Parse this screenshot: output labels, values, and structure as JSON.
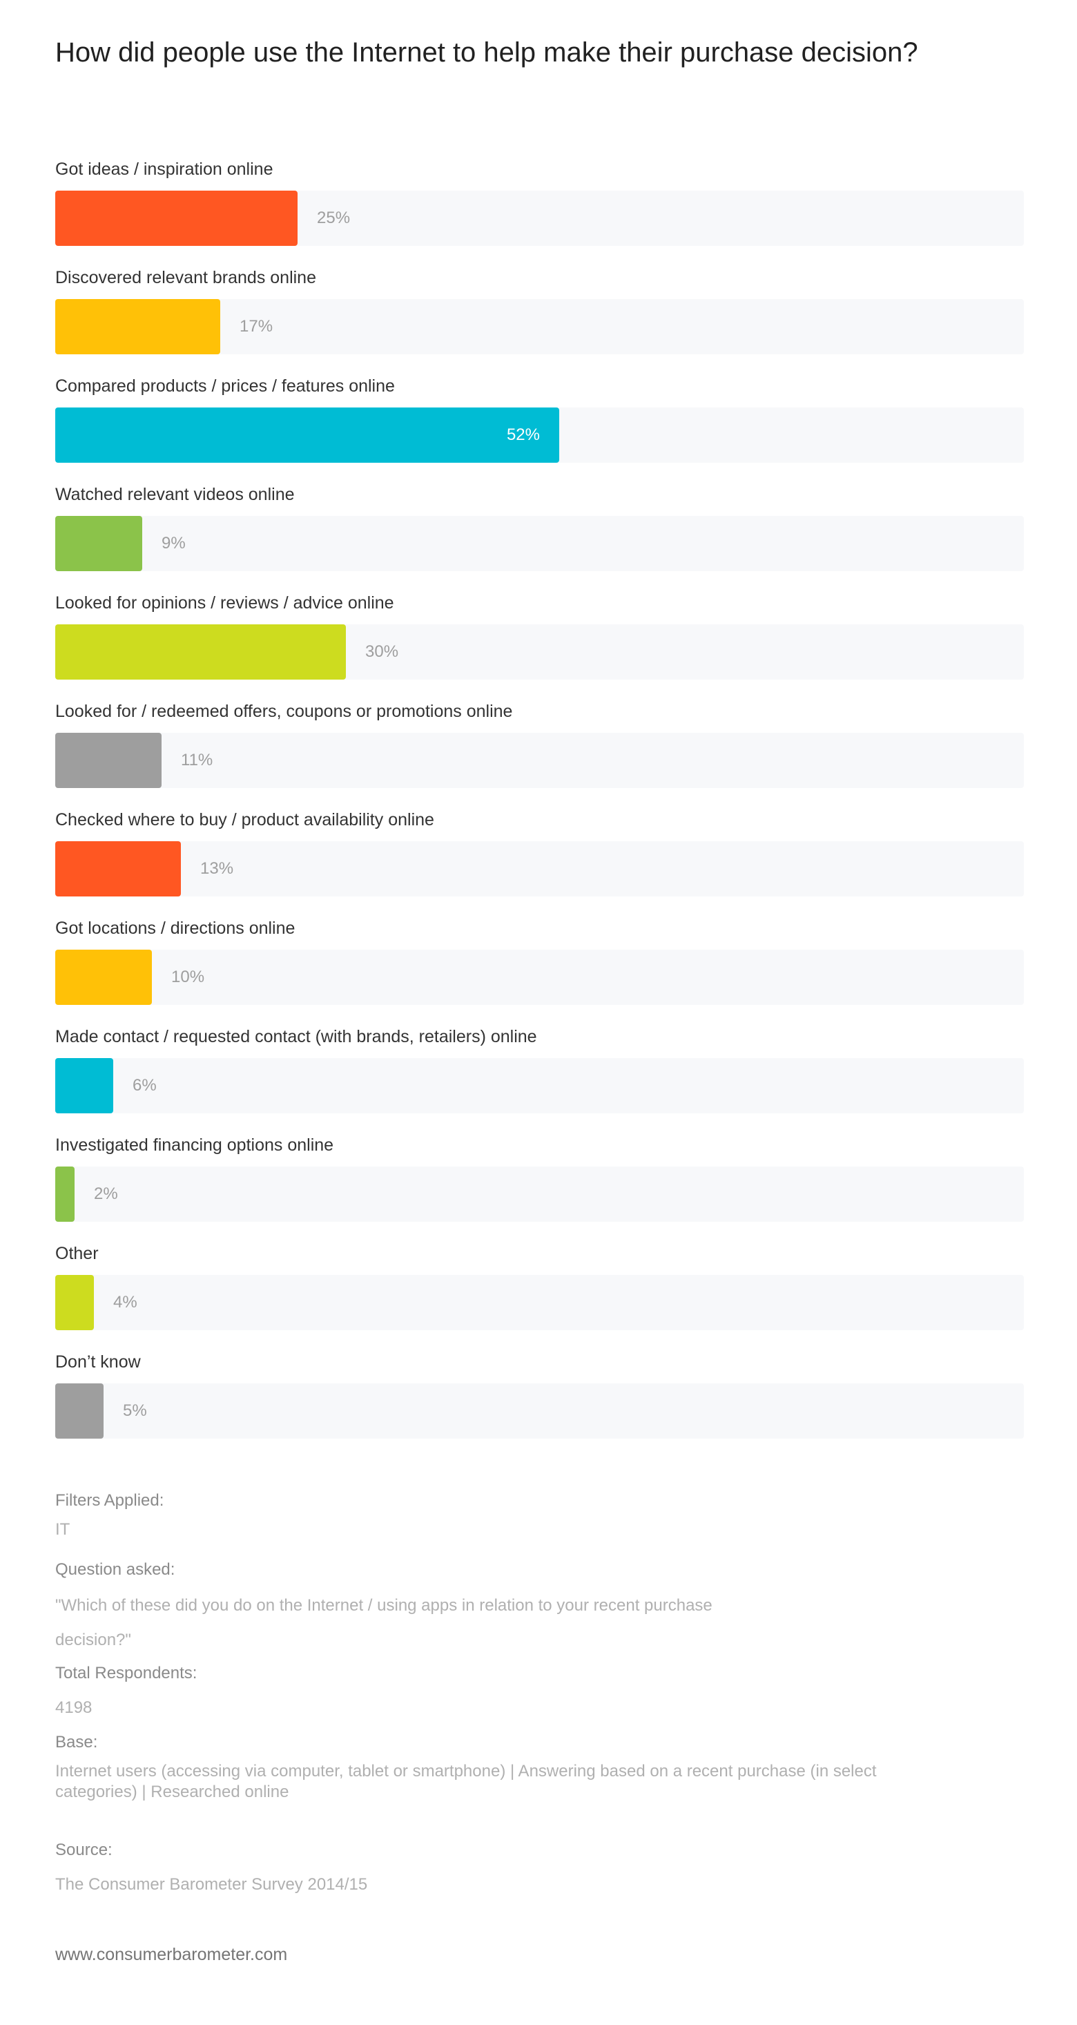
{
  "title": "How did people use the Internet to help make their purchase decision?",
  "chart_data": {
    "type": "bar",
    "orientation": "horizontal",
    "categories": [
      "Got ideas / inspiration online",
      "Discovered relevant brands online",
      "Compared products / prices / features online",
      "Watched relevant videos online",
      "Looked for opinions / reviews / advice online",
      "Looked for / redeemed offers, coupons or promotions online",
      "Checked where to buy / product availability online",
      "Got locations / directions online",
      "Made contact / requested contact (with brands, retailers) online",
      "Investigated financing options online",
      "Other",
      "Don’t know"
    ],
    "values": [
      25,
      17,
      52,
      9,
      30,
      11,
      13,
      10,
      6,
      2,
      4,
      5
    ],
    "value_labels": [
      "25%",
      "17%",
      "52%",
      "9%",
      "30%",
      "11%",
      "13%",
      "10%",
      "6%",
      "2%",
      "4%",
      "5%"
    ],
    "colors": [
      "#ff5722",
      "#ffc107",
      "#00bcd4",
      "#8bc34a",
      "#cddc1f",
      "#9e9e9e",
      "#ff5722",
      "#ffc107",
      "#00bcd4",
      "#8bc34a",
      "#cddc1f",
      "#9e9e9e"
    ],
    "xlim": [
      0,
      100
    ],
    "track_color": "#f7f8fa",
    "grid": false,
    "legend": "none"
  },
  "meta": {
    "filters_label": "Filters Applied:",
    "filters_value": "IT",
    "question_label": "Question asked:",
    "question_value": "\"Which of these did you do on the Internet / using apps in relation to your recent purchase decision?\"",
    "respondents_label": "Total Respondents:",
    "respondents_value": "4198",
    "base_label": "Base:",
    "base_value": "Internet users (accessing via computer, tablet or smartphone) | Answering based on a recent purchase (in select categories) | Researched online",
    "source_label": "Source:",
    "source_value": "The Consumer Barometer Survey 2014/15"
  },
  "footer": {
    "url": "www.consumerbarometer.com"
  }
}
